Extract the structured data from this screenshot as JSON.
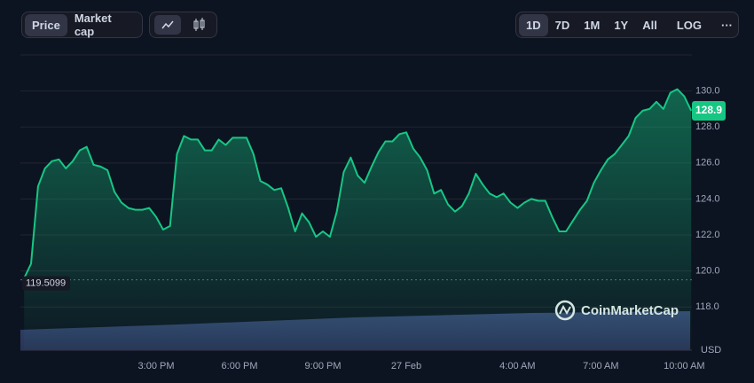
{
  "controls": {
    "metric": [
      "Price",
      "Market cap"
    ],
    "ranges": [
      "1D",
      "7D",
      "1M",
      "1Y",
      "All"
    ],
    "scale": "LOG"
  },
  "chart_data": {
    "type": "line",
    "currency": "USD",
    "watermark": "CoinMarketCap",
    "baseline": 119.5099,
    "x": [
      null,
      null,
      null,
      null,
      null,
      null,
      null,
      null,
      null,
      null,
      null,
      null,
      null,
      null,
      null,
      null,
      null,
      null,
      null,
      "3:00 PM",
      null,
      null,
      null,
      null,
      null,
      null,
      null,
      null,
      null,
      null,
      null,
      "6:00 PM",
      null,
      null,
      null,
      null,
      null,
      null,
      null,
      null,
      null,
      null,
      null,
      "9:00 PM",
      null,
      null,
      null,
      null,
      null,
      null,
      null,
      null,
      null,
      null,
      null,
      "27 Feb",
      null,
      null,
      null,
      null,
      null,
      null,
      null,
      null,
      null,
      null,
      null,
      null,
      null,
      null,
      null,
      "4:00 AM",
      null,
      null,
      null,
      null,
      null,
      null,
      null,
      null,
      null,
      null,
      null,
      "7:00 AM",
      null,
      null,
      null,
      null,
      null,
      null,
      null,
      null,
      null,
      null,
      null,
      "10:00 AM",
      null
    ],
    "series": [
      {
        "name": "Price",
        "color": "#16c784",
        "values": [
          119.6,
          120.4,
          124.7,
          125.7,
          126.1,
          126.2,
          125.7,
          126.1,
          126.7,
          126.9,
          125.9,
          125.8,
          125.6,
          124.4,
          123.8,
          123.5,
          123.4,
          123.4,
          123.5,
          123.0,
          122.3,
          122.5,
          126.5,
          127.5,
          127.3,
          127.3,
          126.7,
          126.7,
          127.3,
          127.0,
          127.4,
          127.4,
          127.4,
          126.5,
          125.0,
          124.8,
          124.5,
          124.6,
          123.5,
          122.2,
          123.2,
          122.7,
          121.9,
          122.2,
          121.9,
          123.3,
          125.5,
          126.3,
          125.3,
          124.9,
          125.8,
          126.6,
          127.2,
          127.2,
          127.6,
          127.7,
          126.8,
          126.3,
          125.6,
          124.3,
          124.5,
          123.7,
          123.3,
          123.6,
          124.3,
          125.4,
          124.8,
          124.3,
          124.1,
          124.3,
          123.8,
          123.5,
          123.8,
          124.0,
          123.9,
          123.9,
          123.0,
          122.2,
          122.2,
          122.8,
          123.4,
          123.9,
          124.9,
          125.6,
          126.2,
          126.5,
          127.0,
          127.5,
          128.5,
          128.9,
          129.0,
          129.4,
          129.0,
          129.9,
          130.1,
          129.7,
          128.9
        ]
      }
    ],
    "ylim": [
      115.6,
      132
    ],
    "yticks": [
      {
        "value": 118,
        "label": "118.0"
      },
      {
        "value": 120,
        "label": "120.0"
      },
      {
        "value": 122,
        "label": "122.0"
      },
      {
        "value": 124,
        "label": "124.0"
      },
      {
        "value": 126,
        "label": "126.0"
      },
      {
        "value": 128,
        "label": "128.0"
      },
      {
        "value": 130,
        "label": "130.0"
      }
    ],
    "grid": true
  }
}
